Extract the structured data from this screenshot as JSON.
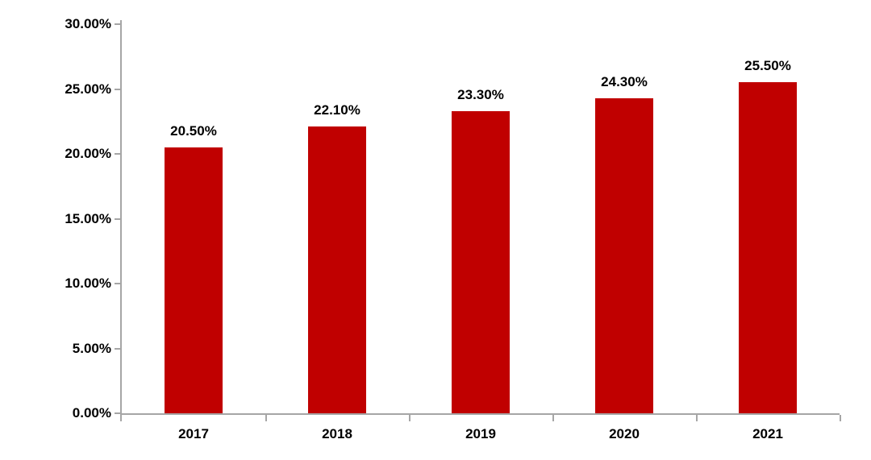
{
  "chart_data": {
    "type": "bar",
    "categories": [
      "2017",
      "2018",
      "2019",
      "2020",
      "2021"
    ],
    "values": [
      20.5,
      22.1,
      23.3,
      24.3,
      25.5
    ],
    "value_labels": [
      "20.50%",
      "22.10%",
      "23.30%",
      "24.30%",
      "25.50%"
    ],
    "yticks": [
      0,
      5,
      10,
      15,
      20,
      25,
      30
    ],
    "ytick_labels": [
      "0.00%",
      "5.00%",
      "10.00%",
      "15.00%",
      "20.00%",
      "25.00%",
      "30.00%"
    ],
    "ylim": [
      0,
      30
    ],
    "title": "",
    "xlabel": "",
    "ylabel": "",
    "grid": false,
    "legend": null,
    "bar_color": "#C00000",
    "axis_color": "#A6A6A6",
    "label_color": "#000000"
  }
}
